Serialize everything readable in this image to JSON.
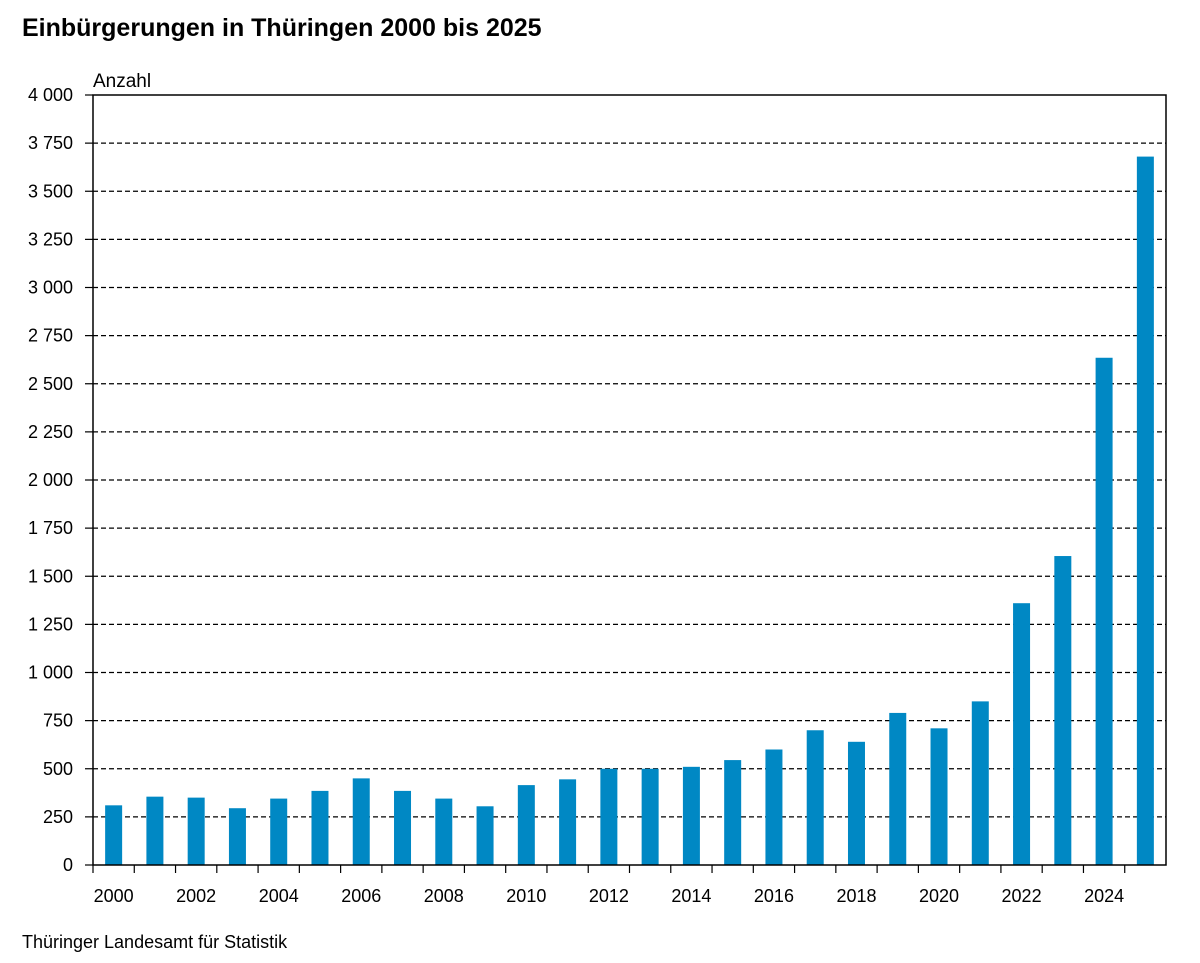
{
  "title": "Einbürgerungen in Thüringen 2000 bis 2025",
  "source": "Thüringer Landesamt für Statistik",
  "chart_data": {
    "type": "bar",
    "title": "Einbürgerungen in Thüringen 2000 bis 2025",
    "xlabel": "",
    "ylabel": "Anzahl",
    "ylim": [
      0,
      4000
    ],
    "yticks": [
      0,
      250,
      500,
      750,
      1000,
      1250,
      1500,
      1750,
      2000,
      2250,
      2500,
      2750,
      3000,
      3250,
      3500,
      3750,
      4000
    ],
    "ytick_labels": [
      "0",
      "250",
      "500",
      "750",
      "1 000",
      "1 250",
      "1 500",
      "1 750",
      "2 000",
      "2 250",
      "2 500",
      "2 750",
      "3 000",
      "3 250",
      "3 500",
      "3 750",
      "4 000"
    ],
    "xtick_labels": [
      "2000",
      "2002",
      "2004",
      "2006",
      "2008",
      "2010",
      "2012",
      "2014",
      "2016",
      "2018",
      "2020",
      "2022",
      "2024"
    ],
    "grid": "horizontal dashed",
    "bar_color": "#0088c4",
    "categories": [
      "2000",
      "2001",
      "2002",
      "2003",
      "2004",
      "2005",
      "2006",
      "2007",
      "2008",
      "2009",
      "2010",
      "2011",
      "2012",
      "2013",
      "2014",
      "2015",
      "2016",
      "2017",
      "2018",
      "2019",
      "2020",
      "2021",
      "2022",
      "2023",
      "2024",
      "2025"
    ],
    "values": [
      310,
      355,
      350,
      295,
      345,
      385,
      450,
      385,
      345,
      305,
      415,
      445,
      500,
      500,
      510,
      545,
      600,
      700,
      640,
      790,
      710,
      850,
      1360,
      1605,
      2635,
      3680
    ]
  }
}
